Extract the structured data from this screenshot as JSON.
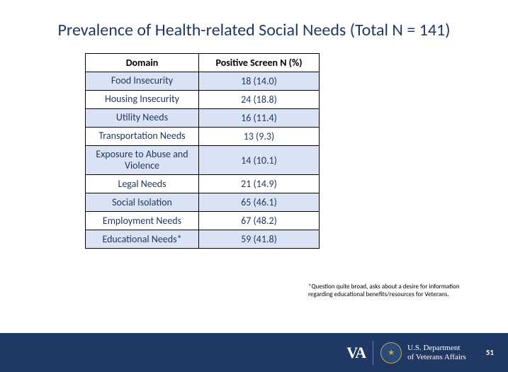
{
  "title": "Prevalence of Health-related Social Needs (Total N = 141)",
  "table": {
    "headers": {
      "domain": "Domain",
      "value": "Positive Screen N (%)"
    },
    "rows": [
      {
        "domain": "Food Insecurity",
        "value": "18 (14.0)",
        "alt": true
      },
      {
        "domain": "Housing Insecurity",
        "value": "24 (18.8)",
        "alt": false
      },
      {
        "domain": "Utility Needs",
        "value": "16 (11.4)",
        "alt": true
      },
      {
        "domain": "Transportation Needs",
        "value": "13 (9.3)",
        "alt": false
      },
      {
        "domain": "Exposure to Abuse and Violence",
        "value": "14 (10.1)",
        "alt": true
      },
      {
        "domain": "Legal Needs",
        "value": "21 (14.9)",
        "alt": false
      },
      {
        "domain": "Social Isolation",
        "value": "65 (46.1)",
        "alt": true
      },
      {
        "domain": "Employment Needs",
        "value": "67 (48.2)",
        "alt": false
      },
      {
        "domain": "Educational Needs*",
        "value": "59 (41.8)",
        "alt": true
      }
    ]
  },
  "footnote": "*Question quite broad, asks about a desire for information regarding educational benefits/resources for Veterans.",
  "footer": {
    "va": "VA",
    "dept_line1": "U.S. Department",
    "dept_line2": "of Veterans Affairs",
    "page": "51"
  },
  "colors": {
    "title": "#1f3864",
    "cell_text": "#1f3864",
    "alt_row_bg": "#dae3f3",
    "footer_bg": "#1f3864"
  }
}
